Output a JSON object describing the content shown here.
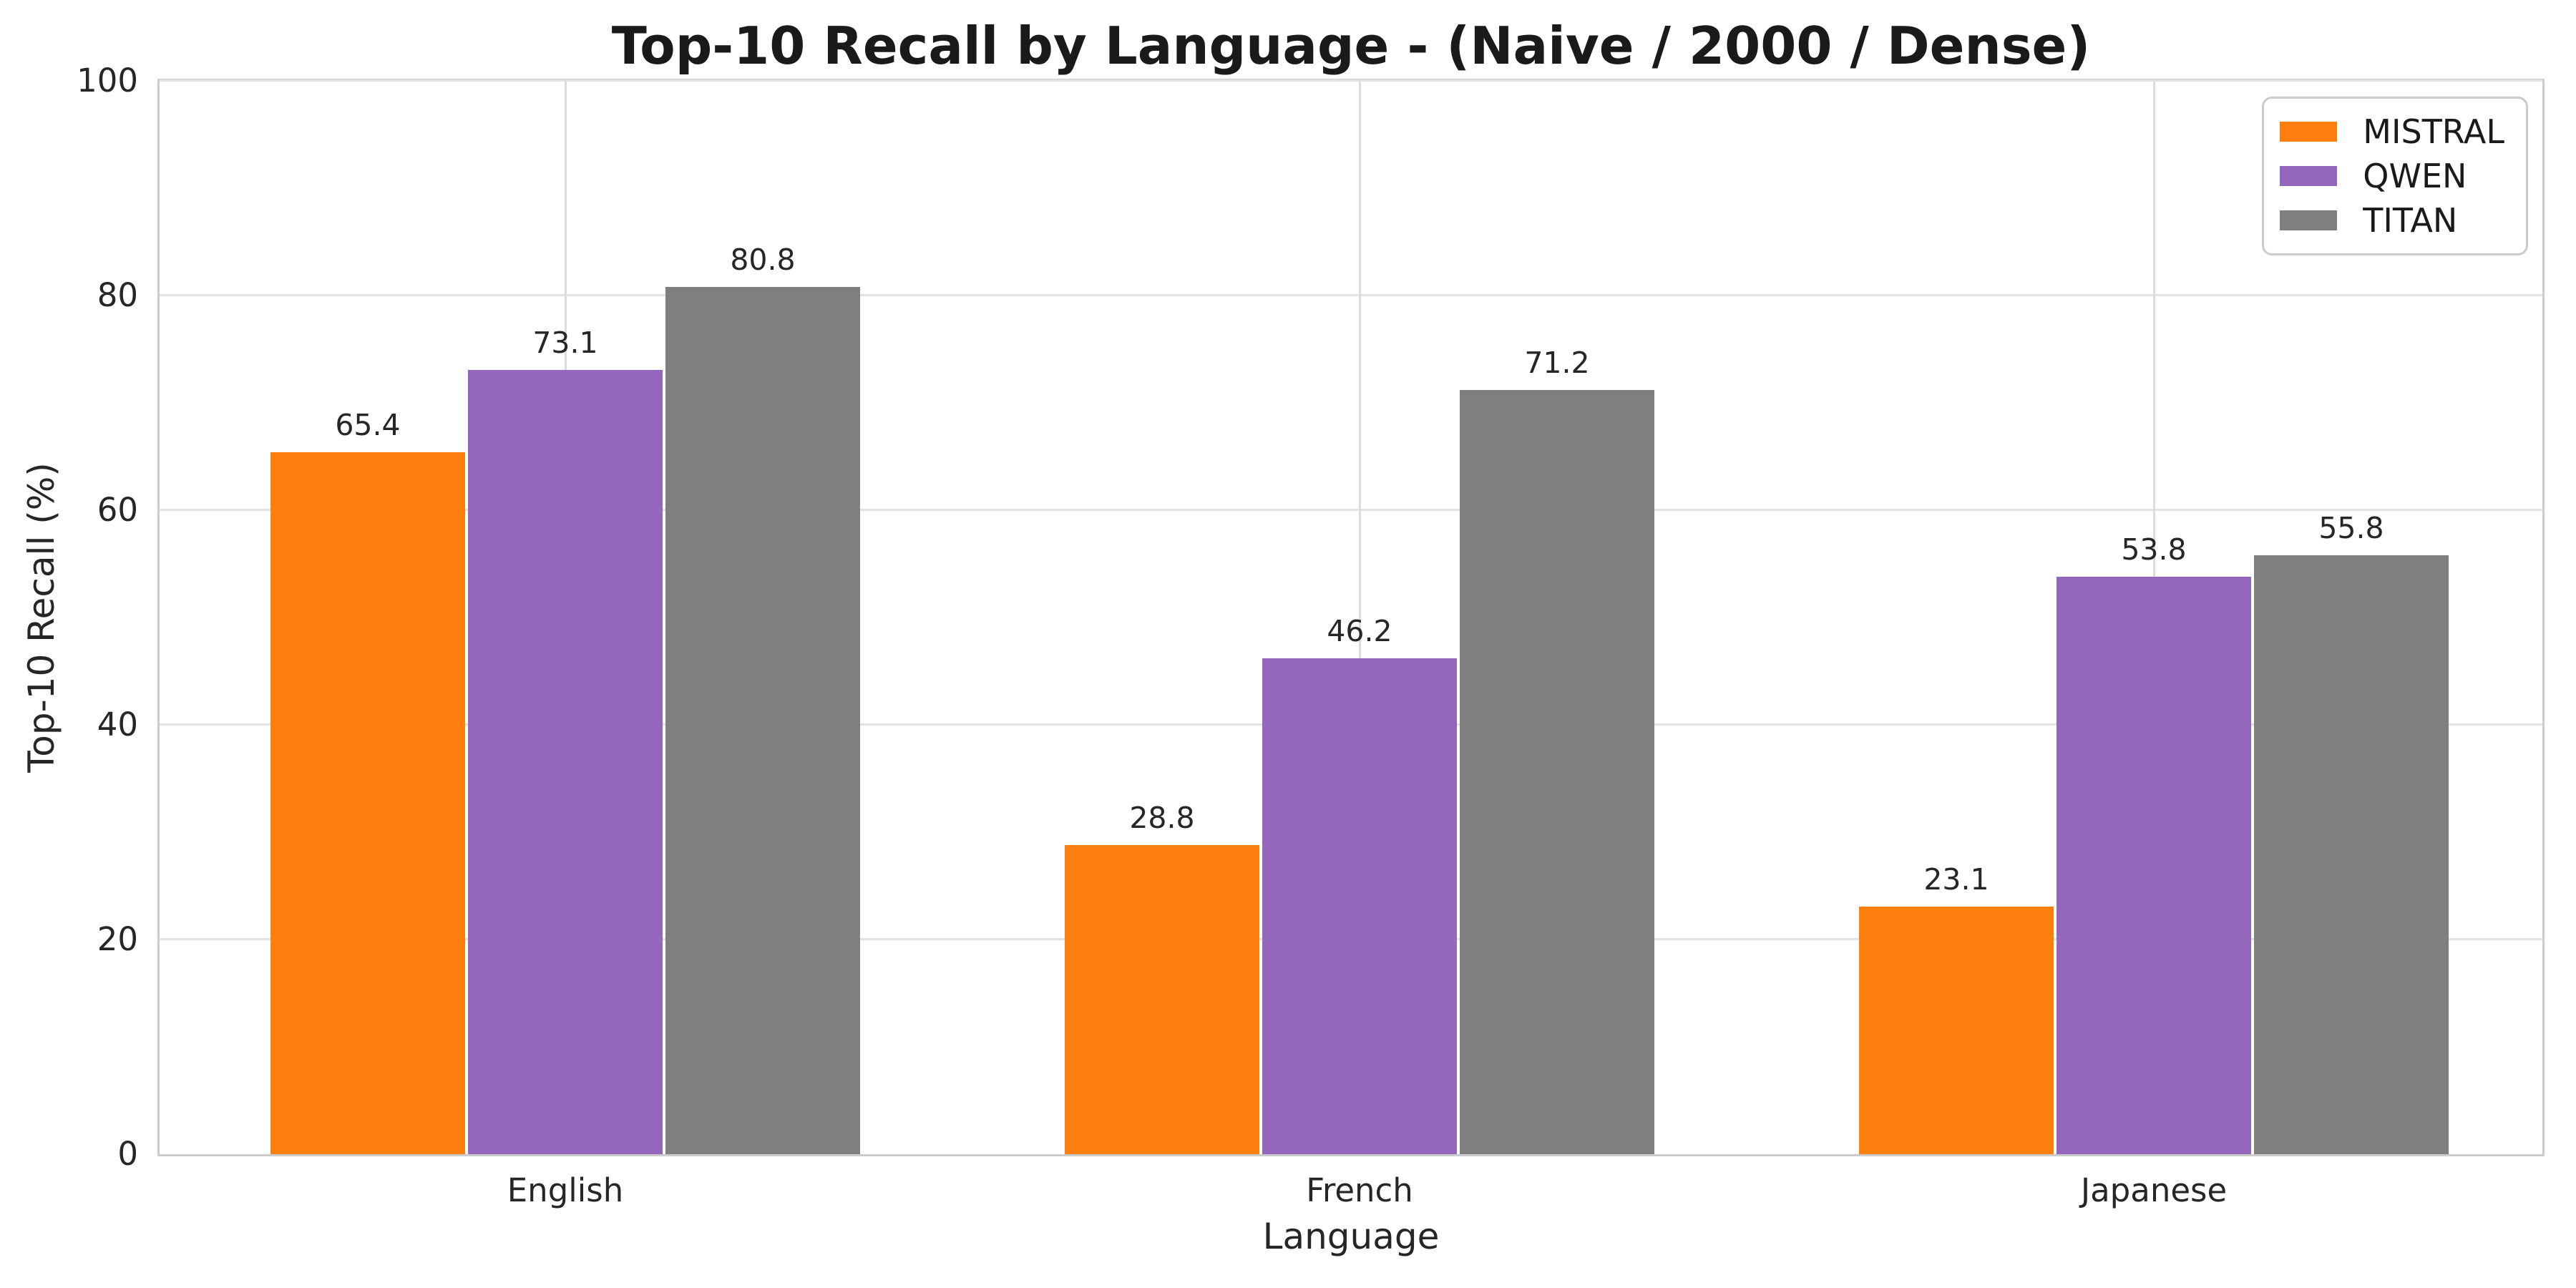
{
  "chart_data": {
    "type": "bar",
    "title": "Top-10 Recall by Language - (Naive / 2000 / Dense)",
    "categories": [
      "English",
      "French",
      "Japanese"
    ],
    "series": [
      {
        "name": "MISTRAL",
        "color": "#ff7f0e",
        "values": [
          65.4,
          28.8,
          23.1
        ]
      },
      {
        "name": "QWEN",
        "color": "#9467bd",
        "values": [
          73.1,
          46.2,
          53.8
        ]
      },
      {
        "name": "TITAN",
        "color": "#7f7f7f",
        "values": [
          80.8,
          71.2,
          55.8
        ]
      }
    ],
    "xlabel": "Language",
    "ylabel": "Top-10 Recall (%)",
    "ylim": [
      0,
      100
    ],
    "yticks": [
      0,
      20,
      40,
      60,
      80,
      100
    ],
    "grid": true,
    "legend_position": "upper right",
    "value_labels": true,
    "colors": {
      "grid_line": "#e2e2e2",
      "spine": "#cccccc",
      "text": "#262626",
      "background": "#ffffff"
    }
  }
}
